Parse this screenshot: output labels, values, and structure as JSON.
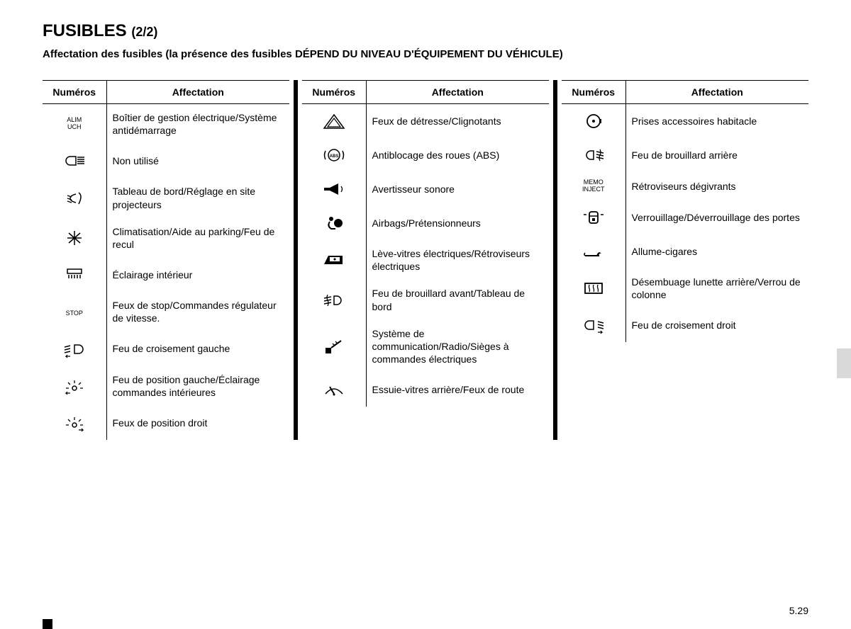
{
  "title_main": "FUSIBLES",
  "title_suffix": "(2/2)",
  "subtitle": "Affectation des fusibles (la présence des fusibles DÉPEND DU NIVEAU D'ÉQUIPEMENT DU VÉHICULE)",
  "page_number": "5.29",
  "headers": {
    "numeros": "Numéros",
    "affectation": "Affectation"
  },
  "colors": {
    "text": "#000000",
    "background": "#ffffff",
    "side_tab": "#d9d9d9"
  },
  "typography": {
    "title_fontsize": 24,
    "subtitle_fontsize": 15,
    "body_fontsize": 14,
    "txticon_fontsize": 9
  },
  "columns": [
    {
      "rows": [
        {
          "icon": "text",
          "icon_text": "ALIM\nUCH",
          "label": "Boîtier de gestion électrique/Système antidémarrage"
        },
        {
          "icon": "high-beam",
          "label": "Non utilisé"
        },
        {
          "icon": "headlamp-level",
          "label": "Tableau de bord/Réglage en site projecteurs"
        },
        {
          "icon": "snowflake",
          "label": "Climatisation/Aide au parking/Feu de recul"
        },
        {
          "icon": "interior-light",
          "label": "Éclairage intérieur"
        },
        {
          "icon": "text",
          "icon_text": "STOP",
          "label": "Feux de stop/Commandes régulateur de vitesse."
        },
        {
          "icon": "low-beam-left",
          "label": "Feu de croisement gauche"
        },
        {
          "icon": "position-light-left",
          "label": "Feu de position gauche/Éclairage commandes intérieures"
        },
        {
          "icon": "position-light-right",
          "label": "Feux de position droit"
        }
      ]
    },
    {
      "rows": [
        {
          "icon": "hazard",
          "label": "Feux de détresse/Clignotants"
        },
        {
          "icon": "abs",
          "label": "Antiblocage des roues (ABS)"
        },
        {
          "icon": "horn",
          "label": "Avertisseur sonore"
        },
        {
          "icon": "airbag",
          "label": "Airbags/Prétensionneurs"
        },
        {
          "icon": "power-window",
          "label": "Lève-vitres électriques/Rétroviseurs électriques"
        },
        {
          "icon": "fog-front",
          "label": "Feu de brouillard avant/Tableau de bord"
        },
        {
          "icon": "radio-phone",
          "label": "Système de communication/Radio/Sièges à commandes électriques"
        },
        {
          "icon": "rear-wiper",
          "label": "Essuie-vitres arrière/Feux de route"
        }
      ]
    },
    {
      "rows": [
        {
          "icon": "socket",
          "label": "Prises accessoires habitacle"
        },
        {
          "icon": "fog-rear",
          "label": "Feu de brouillard arrière"
        },
        {
          "icon": "text",
          "icon_text": "MEMO\nINJECT",
          "label": "Rétroviseurs dégivrants"
        },
        {
          "icon": "door-lock",
          "label": "Verrouillage/Déverrouillage des portes"
        },
        {
          "icon": "lighter",
          "label": "Allume-cigares"
        },
        {
          "icon": "rear-defrost",
          "label": "Désembuage lunette arrière/Verrou de colonne"
        },
        {
          "icon": "low-beam-right",
          "label": "Feu de croisement droit"
        }
      ]
    }
  ]
}
